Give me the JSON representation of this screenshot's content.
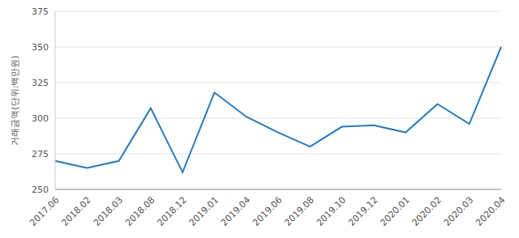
{
  "chart_data": {
    "type": "line",
    "y_label": "거래금액(단위:백만원)",
    "categories": [
      "2017.06",
      "2018.02",
      "2018.03",
      "2018.08",
      "2018.12",
      "2019.01",
      "2019.04",
      "2019.06",
      "2019.08",
      "2019.10",
      "2019.12",
      "2020.01",
      "2020.02",
      "2020.03",
      "2020.04"
    ],
    "values": [
      270,
      265,
      270,
      307,
      262,
      318,
      301,
      290,
      280,
      294,
      295,
      290,
      310,
      296,
      350
    ],
    "color": "#2a7ab9",
    "ylim": [
      250,
      375
    ],
    "yticks": [
      250,
      275,
      300,
      325,
      350,
      375
    ],
    "grid": true
  }
}
